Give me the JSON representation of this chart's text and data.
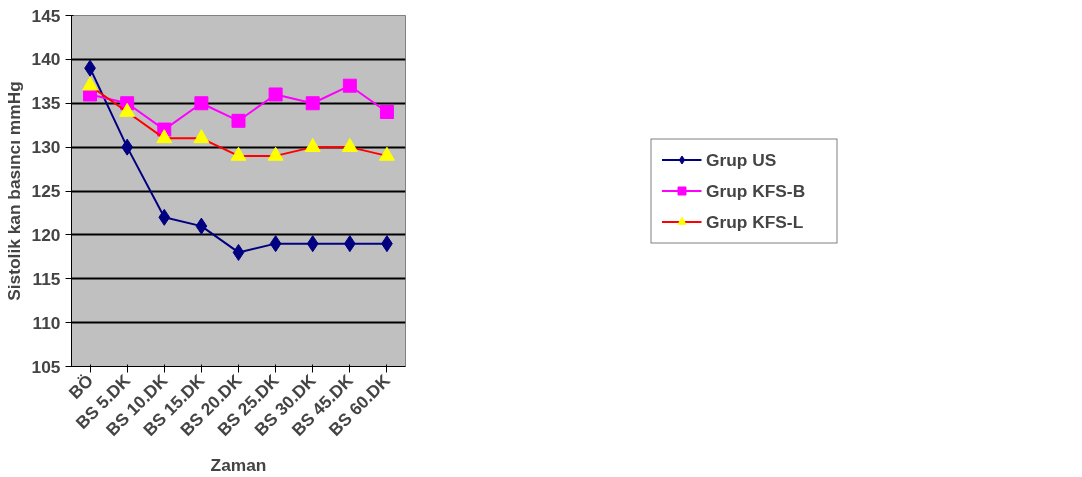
{
  "chart_data": {
    "type": "line",
    "xlabel": "Zaman",
    "ylabel": "Sistolik kan basıncı mmHg",
    "categories": [
      "BÖ",
      "BS 5.DK",
      "BS 10.DK",
      "BS 15.DK",
      "BS 20.DK",
      "BS 25.DK",
      "BS 30.DK",
      "BS 45.DK",
      "BS 60.DK"
    ],
    "series": [
      {
        "name": "Grup US",
        "color": "#000080",
        "marker": "diamond",
        "values": [
          139,
          130,
          122,
          121,
          118,
          119,
          119,
          119,
          119
        ]
      },
      {
        "name": "Grup KFS-B",
        "color": "#ff00ff",
        "marker": "square",
        "values": [
          136,
          135,
          132,
          135,
          133,
          136,
          135,
          137,
          134
        ]
      },
      {
        "name": "Grup KFS-L",
        "color": "#ff0000",
        "marker": "triangle",
        "colors": [
          "#ffff00",
          "#ffff00",
          "#ffff00",
          "#ffff00",
          "#ffff00",
          "#ffff00",
          "#ffff00",
          "#ffff00",
          "#ffff00"
        ],
        "values": [
          137,
          134,
          131,
          131,
          129,
          129,
          130,
          130,
          129
        ]
      }
    ],
    "ylim": [
      105,
      145
    ],
    "yticks": [
      105,
      110,
      115,
      120,
      125,
      130,
      135,
      140,
      145
    ],
    "grid": "y",
    "legend": "right",
    "line_style": "solid"
  }
}
